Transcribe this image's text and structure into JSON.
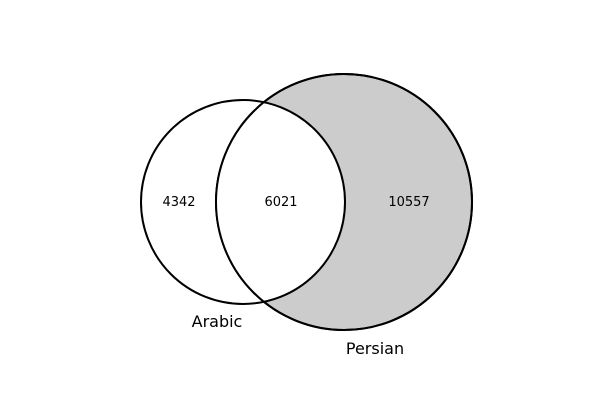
{
  "venn": {
    "sets": [
      {
        "id": "arabic",
        "label": "Arabic",
        "fill": "none",
        "stroke": "#000000"
      },
      {
        "id": "persian",
        "label": "Persian",
        "fill": "#cccccc",
        "stroke": "#000000"
      }
    ],
    "regions": {
      "arabic_only": "4342",
      "both": "6021",
      "persian_only": "10557"
    }
  }
}
